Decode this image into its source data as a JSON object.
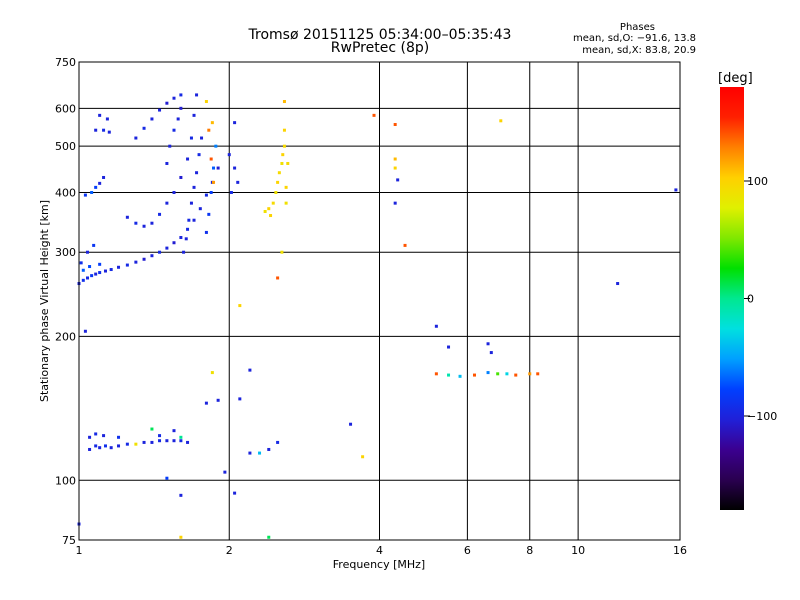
{
  "header": {
    "title_line1": "Tromsø 20151125 05:34:00–05:35:43",
    "title_line2": "RwPretec (8p)",
    "stats_head": "Phases",
    "stats_o": "mean, sd,O: −91.6, 13.8",
    "stats_x": "mean, sd,X:  83.8, 20.9"
  },
  "colorbar": {
    "unit_label": "[deg]",
    "range": [
      -180,
      180
    ],
    "ticks": [
      "100",
      "0",
      "−100"
    ],
    "tick_values": [
      100,
      0,
      -100
    ],
    "colors": [
      "#000000",
      "#2a0050",
      "#3b0090",
      "#2020d8",
      "#0040ff",
      "#00a0ff",
      "#00e0e0",
      "#00e890",
      "#00e000",
      "#80e800",
      "#e0f000",
      "#ffd000",
      "#ff8000",
      "#ff2000",
      "#ff0000"
    ]
  },
  "chart_data": {
    "type": "scatter",
    "title": "Tromsø 20151125 05:34:00–05:35:43",
    "subtitle": "RwPretec (8p)",
    "xlabel": "Frequency [MHz]",
    "ylabel": "Stationary phase Virtual Height [km]",
    "x_scale": "log",
    "y_scale": "log",
    "xlim": [
      1,
      16
    ],
    "ylim": [
      75,
      750
    ],
    "x_ticks": [
      "1",
      "2",
      "4",
      "6",
      "8",
      "10",
      "16"
    ],
    "x_tick_values": [
      1,
      2,
      4,
      6,
      8,
      10,
      16
    ],
    "y_ticks": [
      "75",
      "100",
      "200",
      "300",
      "400",
      "500",
      "600",
      "750"
    ],
    "y_tick_values": [
      75,
      100,
      200,
      300,
      400,
      500,
      600,
      750
    ],
    "grid": true,
    "color_scale": "phase [deg]",
    "points": [
      {
        "f": 1.0,
        "h": 258,
        "p": -100
      },
      {
        "f": 1.02,
        "h": 262,
        "p": -90
      },
      {
        "f": 1.04,
        "h": 265,
        "p": -95
      },
      {
        "f": 1.06,
        "h": 268,
        "p": -85
      },
      {
        "f": 1.08,
        "h": 270,
        "p": -100
      },
      {
        "f": 1.1,
        "h": 272,
        "p": -90
      },
      {
        "f": 1.13,
        "h": 274,
        "p": -100
      },
      {
        "f": 1.16,
        "h": 276,
        "p": -95
      },
      {
        "f": 1.2,
        "h": 279,
        "p": -100
      },
      {
        "f": 1.25,
        "h": 282,
        "p": -95
      },
      {
        "f": 1.3,
        "h": 286,
        "p": -100
      },
      {
        "f": 1.35,
        "h": 290,
        "p": -105
      },
      {
        "f": 1.4,
        "h": 295,
        "p": -100
      },
      {
        "f": 1.45,
        "h": 300,
        "p": -95
      },
      {
        "f": 1.5,
        "h": 306,
        "p": -100
      },
      {
        "f": 1.55,
        "h": 314,
        "p": -105
      },
      {
        "f": 1.6,
        "h": 322,
        "p": -100
      },
      {
        "f": 1.65,
        "h": 335,
        "p": -95
      },
      {
        "f": 1.7,
        "h": 350,
        "p": -100
      },
      {
        "f": 1.75,
        "h": 370,
        "p": -100
      },
      {
        "f": 1.8,
        "h": 395,
        "p": -95
      },
      {
        "f": 1.85,
        "h": 420,
        "p": -100
      },
      {
        "f": 1.9,
        "h": 450,
        "p": -105
      },
      {
        "f": 1.01,
        "h": 285,
        "p": -90
      },
      {
        "f": 1.04,
        "h": 300,
        "p": -100
      },
      {
        "f": 1.07,
        "h": 310,
        "p": -85
      },
      {
        "f": 1.02,
        "h": 275,
        "p": -70
      },
      {
        "f": 1.05,
        "h": 280,
        "p": -75
      },
      {
        "f": 1.1,
        "h": 283,
        "p": -80
      },
      {
        "f": 1.03,
        "h": 395,
        "p": -85
      },
      {
        "f": 1.06,
        "h": 400,
        "p": -70
      },
      {
        "f": 1.08,
        "h": 410,
        "p": -80
      },
      {
        "f": 1.1,
        "h": 418,
        "p": -100
      },
      {
        "f": 1.12,
        "h": 430,
        "p": -100
      },
      {
        "f": 1.08,
        "h": 540,
        "p": -100
      },
      {
        "f": 1.12,
        "h": 540,
        "p": -95
      },
      {
        "f": 1.15,
        "h": 535,
        "p": -100
      },
      {
        "f": 1.1,
        "h": 580,
        "p": -100
      },
      {
        "f": 1.14,
        "h": 570,
        "p": -100
      },
      {
        "f": 1.3,
        "h": 520,
        "p": -100
      },
      {
        "f": 1.35,
        "h": 545,
        "p": -95
      },
      {
        "f": 1.4,
        "h": 570,
        "p": -100
      },
      {
        "f": 1.45,
        "h": 595,
        "p": -100
      },
      {
        "f": 1.5,
        "h": 615,
        "p": -105
      },
      {
        "f": 1.55,
        "h": 630,
        "p": -100
      },
      {
        "f": 1.6,
        "h": 640,
        "p": -95
      },
      {
        "f": 1.25,
        "h": 355,
        "p": -100
      },
      {
        "f": 1.3,
        "h": 345,
        "p": -95
      },
      {
        "f": 1.35,
        "h": 340,
        "p": -100
      },
      {
        "f": 1.4,
        "h": 345,
        "p": -100
      },
      {
        "f": 1.45,
        "h": 360,
        "p": -95
      },
      {
        "f": 1.5,
        "h": 380,
        "p": -100
      },
      {
        "f": 1.55,
        "h": 400,
        "p": -100
      },
      {
        "f": 1.6,
        "h": 430,
        "p": -105
      },
      {
        "f": 1.65,
        "h": 470,
        "p": -100
      },
      {
        "f": 1.68,
        "h": 520,
        "p": -95
      },
      {
        "f": 1.7,
        "h": 580,
        "p": -100
      },
      {
        "f": 1.72,
        "h": 640,
        "p": -100
      },
      {
        "f": 1.5,
        "h": 460,
        "p": -100
      },
      {
        "f": 1.52,
        "h": 500,
        "p": -100
      },
      {
        "f": 1.55,
        "h": 540,
        "p": -95
      },
      {
        "f": 1.58,
        "h": 570,
        "p": -100
      },
      {
        "f": 1.6,
        "h": 600,
        "p": -105
      },
      {
        "f": 1.62,
        "h": 300,
        "p": -100
      },
      {
        "f": 1.64,
        "h": 320,
        "p": -100
      },
      {
        "f": 1.66,
        "h": 350,
        "p": -95
      },
      {
        "f": 1.68,
        "h": 380,
        "p": -100
      },
      {
        "f": 1.7,
        "h": 410,
        "p": -100
      },
      {
        "f": 1.72,
        "h": 440,
        "p": -100
      },
      {
        "f": 1.74,
        "h": 480,
        "p": -95
      },
      {
        "f": 1.76,
        "h": 520,
        "p": -100
      },
      {
        "f": 1.8,
        "h": 330,
        "p": -90
      },
      {
        "f": 1.82,
        "h": 360,
        "p": -85
      },
      {
        "f": 1.84,
        "h": 400,
        "p": -80
      },
      {
        "f": 1.86,
        "h": 450,
        "p": -70
      },
      {
        "f": 1.88,
        "h": 500,
        "p": -60
      },
      {
        "f": 1.82,
        "h": 540,
        "p": 130
      },
      {
        "f": 1.84,
        "h": 470,
        "p": 140
      },
      {
        "f": 1.86,
        "h": 420,
        "p": 120
      },
      {
        "f": 1.8,
        "h": 620,
        "p": 100
      },
      {
        "f": 1.85,
        "h": 560,
        "p": 110
      },
      {
        "f": 2.0,
        "h": 480,
        "p": -100
      },
      {
        "f": 2.05,
        "h": 450,
        "p": -100
      },
      {
        "f": 2.02,
        "h": 400,
        "p": -95
      },
      {
        "f": 2.08,
        "h": 420,
        "p": -100
      },
      {
        "f": 2.05,
        "h": 560,
        "p": -100
      },
      {
        "f": 2.4,
        "h": 370,
        "p": 100
      },
      {
        "f": 2.45,
        "h": 380,
        "p": 95
      },
      {
        "f": 2.48,
        "h": 400,
        "p": 90
      },
      {
        "f": 2.5,
        "h": 420,
        "p": 100
      },
      {
        "f": 2.52,
        "h": 440,
        "p": 95
      },
      {
        "f": 2.55,
        "h": 460,
        "p": 90
      },
      {
        "f": 2.56,
        "h": 480,
        "p": 100
      },
      {
        "f": 2.58,
        "h": 500,
        "p": 95
      },
      {
        "f": 2.58,
        "h": 540,
        "p": 100
      },
      {
        "f": 2.6,
        "h": 380,
        "p": 90
      },
      {
        "f": 2.6,
        "h": 410,
        "p": 100
      },
      {
        "f": 2.62,
        "h": 460,
        "p": 95
      },
      {
        "f": 2.36,
        "h": 365,
        "p": 90
      },
      {
        "f": 2.42,
        "h": 358,
        "p": 100
      },
      {
        "f": 2.58,
        "h": 620,
        "p": 110
      },
      {
        "f": 2.55,
        "h": 300,
        "p": 90
      },
      {
        "f": 2.5,
        "h": 265,
        "p": 140
      },
      {
        "f": 1.05,
        "h": 116,
        "p": -100
      },
      {
        "f": 1.08,
        "h": 118,
        "p": -95
      },
      {
        "f": 1.1,
        "h": 117,
        "p": -100
      },
      {
        "f": 1.13,
        "h": 118,
        "p": -90
      },
      {
        "f": 1.16,
        "h": 117,
        "p": -100
      },
      {
        "f": 1.2,
        "h": 118,
        "p": -100
      },
      {
        "f": 1.25,
        "h": 119,
        "p": -95
      },
      {
        "f": 1.3,
        "h": 119,
        "p": 90
      },
      {
        "f": 1.35,
        "h": 120,
        "p": -100
      },
      {
        "f": 1.4,
        "h": 120,
        "p": -100
      },
      {
        "f": 1.45,
        "h": 121,
        "p": -95
      },
      {
        "f": 1.5,
        "h": 121,
        "p": -100
      },
      {
        "f": 1.55,
        "h": 121,
        "p": -100
      },
      {
        "f": 1.6,
        "h": 121,
        "p": -95
      },
      {
        "f": 1.65,
        "h": 120,
        "p": -100
      },
      {
        "f": 1.05,
        "h": 123,
        "p": -100
      },
      {
        "f": 1.08,
        "h": 125,
        "p": -95
      },
      {
        "f": 1.12,
        "h": 124,
        "p": -100
      },
      {
        "f": 1.2,
        "h": 123,
        "p": -90
      },
      {
        "f": 1.45,
        "h": 124,
        "p": -95
      },
      {
        "f": 1.6,
        "h": 123,
        "p": 0
      },
      {
        "f": 1.4,
        "h": 128,
        "p": 10
      },
      {
        "f": 1.55,
        "h": 127,
        "p": -100
      },
      {
        "f": 1.85,
        "h": 168,
        "p": 90
      },
      {
        "f": 1.8,
        "h": 145,
        "p": -100
      },
      {
        "f": 1.9,
        "h": 147,
        "p": -100
      },
      {
        "f": 2.1,
        "h": 148,
        "p": -100
      },
      {
        "f": 2.2,
        "h": 170,
        "p": -100
      },
      {
        "f": 2.3,
        "h": 114,
        "p": -40
      },
      {
        "f": 2.4,
        "h": 116,
        "p": -100
      },
      {
        "f": 2.5,
        "h": 120,
        "p": -95
      },
      {
        "f": 2.2,
        "h": 114,
        "p": -100
      },
      {
        "f": 1.96,
        "h": 104,
        "p": -100
      },
      {
        "f": 2.05,
        "h": 94,
        "p": -100
      },
      {
        "f": 1.6,
        "h": 93,
        "p": -100
      },
      {
        "f": 1.5,
        "h": 101,
        "p": -80
      },
      {
        "f": 1.0,
        "h": 81,
        "p": -100
      },
      {
        "f": 1.6,
        "h": 76,
        "p": 100
      },
      {
        "f": 2.4,
        "h": 76,
        "p": 10
      },
      {
        "f": 2.1,
        "h": 232,
        "p": 100
      },
      {
        "f": 1.03,
        "h": 205,
        "p": -100
      },
      {
        "f": 3.5,
        "h": 131,
        "p": -100
      },
      {
        "f": 3.7,
        "h": 112,
        "p": 100
      },
      {
        "f": 3.9,
        "h": 580,
        "p": 140
      },
      {
        "f": 4.3,
        "h": 555,
        "p": 140
      },
      {
        "f": 4.3,
        "h": 470,
        "p": 110
      },
      {
        "f": 4.3,
        "h": 450,
        "p": 100
      },
      {
        "f": 4.35,
        "h": 425,
        "p": -100
      },
      {
        "f": 4.3,
        "h": 380,
        "p": -100
      },
      {
        "f": 4.5,
        "h": 310,
        "p": 140
      },
      {
        "f": 5.2,
        "h": 210,
        "p": -100
      },
      {
        "f": 5.5,
        "h": 190,
        "p": -100
      },
      {
        "f": 5.2,
        "h": 167,
        "p": 140
      },
      {
        "f": 5.5,
        "h": 166,
        "p": -10
      },
      {
        "f": 5.8,
        "h": 165,
        "p": -40
      },
      {
        "f": 6.2,
        "h": 166,
        "p": 140
      },
      {
        "f": 6.6,
        "h": 193,
        "p": -100
      },
      {
        "f": 6.7,
        "h": 185,
        "p": -100
      },
      {
        "f": 6.6,
        "h": 168,
        "p": -60
      },
      {
        "f": 6.9,
        "h": 167,
        "p": 40
      },
      {
        "f": 7.2,
        "h": 167,
        "p": -30
      },
      {
        "f": 7.5,
        "h": 166,
        "p": 140
      },
      {
        "f": 8.0,
        "h": 167,
        "p": 120
      },
      {
        "f": 8.3,
        "h": 167,
        "p": 140
      },
      {
        "f": 7.0,
        "h": 565,
        "p": 100
      },
      {
        "f": 12.0,
        "h": 258,
        "p": -100
      },
      {
        "f": 15.7,
        "h": 405,
        "p": -100
      }
    ]
  }
}
